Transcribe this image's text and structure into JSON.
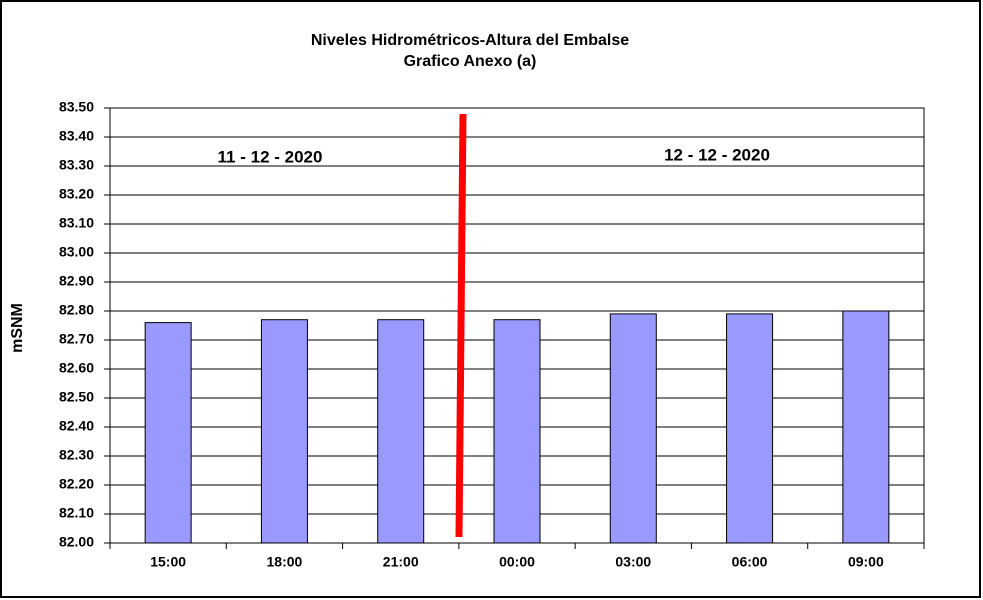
{
  "chart_data": {
    "type": "bar",
    "title": "Niveles Hidrométricos-Altura del Embalse",
    "subtitle": "Grafico Anexo (a)",
    "y_label": "mSNM",
    "annotations": [
      "11 - 12 - 2020",
      "12 - 12 - 2020"
    ],
    "categories": [
      "15:00",
      "18:00",
      "21:00",
      "00:00",
      "03:00",
      "06:00",
      "09:00"
    ],
    "values": [
      82.76,
      82.77,
      82.77,
      82.77,
      82.79,
      82.79,
      82.8
    ],
    "color": "#9999ff",
    "ylim": [
      82.0,
      83.5
    ],
    "yticks": [
      {
        "value": 82.0,
        "label": "82.00"
      },
      {
        "value": 82.1,
        "label": "82.10"
      },
      {
        "value": 82.2,
        "label": "82.20"
      },
      {
        "value": 82.3,
        "label": "82.30"
      },
      {
        "value": 82.4,
        "label": "82.40"
      },
      {
        "value": 82.5,
        "label": "82.50"
      },
      {
        "value": 82.6,
        "label": "82.60"
      },
      {
        "value": 82.7,
        "label": "82.70"
      },
      {
        "value": 82.8,
        "label": "82.80"
      },
      {
        "value": 82.9,
        "label": "82.90"
      },
      {
        "value": 83.0,
        "label": "83.00"
      },
      {
        "value": 83.1,
        "label": "83.10"
      },
      {
        "value": 83.2,
        "label": "83.20"
      },
      {
        "value": 83.3,
        "label": "83.30"
      },
      {
        "value": 83.4,
        "label": "83.40"
      },
      {
        "value": 83.5,
        "label": "83.50"
      }
    ],
    "grid": true
  }
}
